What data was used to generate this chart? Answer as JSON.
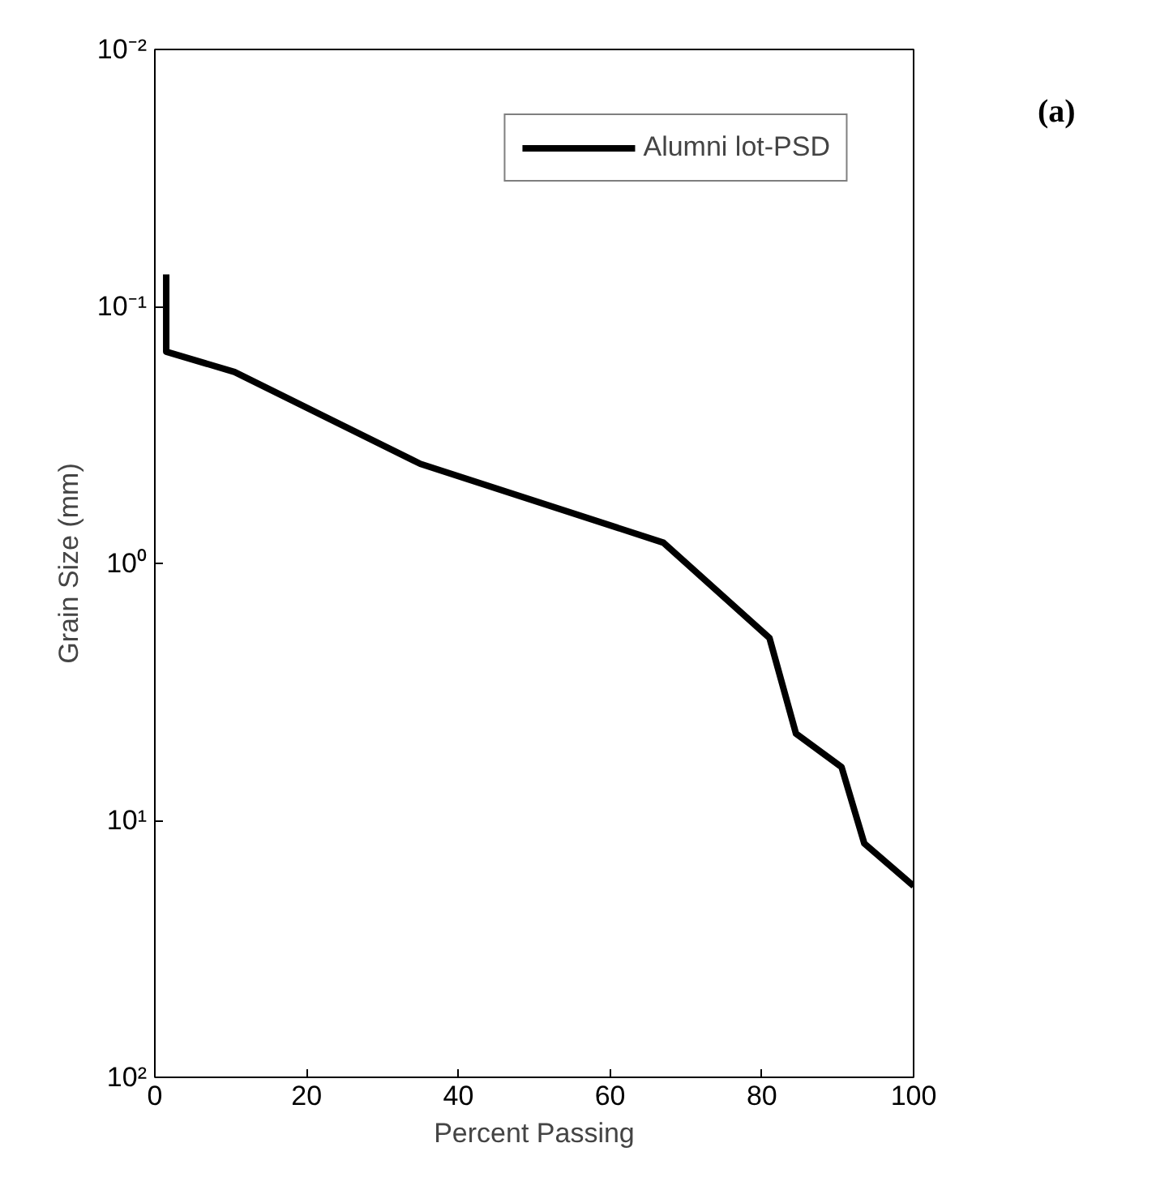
{
  "chart_data": {
    "type": "line",
    "xlabel": "Percent Passing",
    "ylabel": "Grain Size (mm)",
    "annotations": [
      "(a)"
    ],
    "x": [
      1.5,
      1.5,
      10.5,
      35,
      67,
      81,
      84.5,
      90.5,
      93.5,
      100
    ],
    "series": [
      {
        "name": "Alumni lot-PSD",
        "color": "#000000",
        "values": [
          0.075,
          0.15,
          0.18,
          0.41,
          0.83,
          1.95,
          4.6,
          6.2,
          12.3,
          18
        ]
      }
    ],
    "xlim": [
      0,
      100
    ],
    "xticks": [
      0,
      20,
      40,
      60,
      80,
      100
    ],
    "ylim": [
      100,
      0.01
    ],
    "log": "y",
    "yticks": [
      {
        "value": 0.01,
        "label": "10⁻²"
      },
      {
        "value": 0.1,
        "label": "10⁻¹"
      },
      {
        "value": 1,
        "label": "10⁰"
      },
      {
        "value": 10,
        "label": "10¹"
      },
      {
        "value": 100,
        "label": "10²"
      }
    ],
    "grid": false,
    "legend": "top right",
    "marker": "none",
    "line_style": "solid"
  }
}
